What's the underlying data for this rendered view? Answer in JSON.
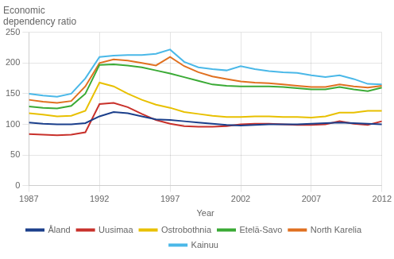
{
  "chart_data": {
    "type": "line",
    "title": "Economic\ndependency ratio",
    "xlabel": "Year",
    "x": [
      1987,
      1988,
      1989,
      1990,
      1991,
      1992,
      1993,
      1994,
      1995,
      1996,
      1997,
      1998,
      1999,
      2000,
      2001,
      2002,
      2003,
      2004,
      2005,
      2006,
      2007,
      2008,
      2009,
      2010,
      2011,
      2012
    ],
    "series": [
      {
        "name": "Åland",
        "color": "#1b3f8b",
        "values": [
          103,
          101,
          100,
          100,
          102,
          113,
          120,
          118,
          113,
          108,
          107,
          105,
          103,
          101,
          99,
          98,
          99,
          100,
          100,
          100,
          101,
          102,
          103,
          102,
          101,
          100
        ]
      },
      {
        "name": "Uusimaa",
        "color": "#c8312b",
        "values": [
          84,
          83,
          82,
          83,
          87,
          133,
          135,
          128,
          117,
          107,
          101,
          97,
          96,
          96,
          97,
          100,
          101,
          101,
          100,
          99,
          99,
          100,
          105,
          101,
          99,
          105
        ]
      },
      {
        "name": "Ostrobothnia",
        "color": "#e8c000",
        "values": [
          118,
          116,
          113,
          114,
          122,
          168,
          162,
          150,
          140,
          132,
          127,
          120,
          117,
          114,
          112,
          112,
          113,
          113,
          112,
          112,
          111,
          113,
          119,
          119,
          122,
          122
        ]
      },
      {
        "name": "Etelä-Savo",
        "color": "#3aaa35",
        "values": [
          129,
          127,
          126,
          130,
          150,
          197,
          198,
          196,
          193,
          188,
          183,
          177,
          171,
          165,
          163,
          162,
          162,
          162,
          161,
          159,
          157,
          157,
          161,
          157,
          154,
          160
        ]
      },
      {
        "name": "North Karelia",
        "color": "#e07020",
        "values": [
          140,
          137,
          135,
          138,
          162,
          200,
          206,
          204,
          200,
          196,
          210,
          195,
          185,
          178,
          174,
          170,
          168,
          167,
          165,
          163,
          161,
          161,
          165,
          162,
          160,
          163
        ]
      },
      {
        "name": "Kainuu",
        "color": "#4ab8e8",
        "values": [
          150,
          147,
          145,
          150,
          175,
          210,
          212,
          213,
          213,
          215,
          222,
          202,
          193,
          190,
          188,
          195,
          190,
          187,
          185,
          184,
          180,
          177,
          180,
          174,
          166,
          165
        ]
      }
    ],
    "xlim": [
      1987,
      2012
    ],
    "xticks": [
      1987,
      1992,
      1997,
      2002,
      2007,
      2012
    ],
    "ylim": [
      0,
      250
    ],
    "yticks": [
      0,
      50,
      100,
      150,
      200,
      250
    ],
    "grid": true,
    "legend": "bottom"
  }
}
